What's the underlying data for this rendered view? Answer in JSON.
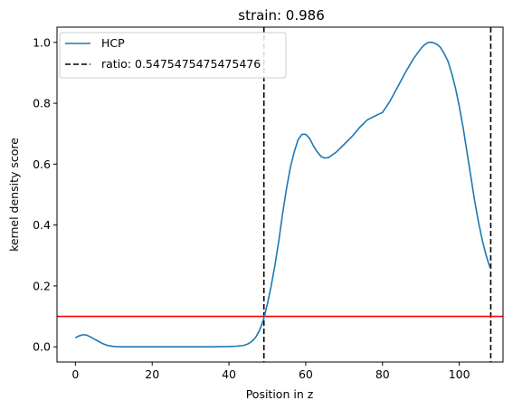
{
  "chart_data": {
    "type": "line",
    "title": "strain: 0.986",
    "xlabel": "Position in z",
    "ylabel": "kernel density score",
    "xlim": [
      -4.8,
      111.4
    ],
    "ylim": [
      -0.05,
      1.05
    ],
    "xticks": [
      "0",
      "20",
      "40",
      "60",
      "80",
      "100"
    ],
    "yticks": [
      "0.0",
      "0.2",
      "0.4",
      "0.6",
      "0.8",
      "1.0"
    ],
    "grid": false,
    "legend_position": "upper left",
    "series": [
      {
        "name": "HCP",
        "color": "#1f77b4",
        "x": [
          0,
          1,
          2,
          3,
          4,
          5,
          6,
          7,
          8,
          9,
          10,
          12,
          15,
          20,
          25,
          30,
          35,
          40,
          42,
          44,
          45,
          46,
          47,
          48,
          49,
          50,
          51,
          52,
          53,
          54,
          55,
          56,
          57,
          58,
          59,
          60,
          61,
          62,
          63,
          64,
          65,
          66,
          68,
          70,
          72,
          74,
          76,
          78,
          80,
          82,
          84,
          86,
          88,
          90,
          91,
          92,
          93,
          94,
          95,
          96,
          97,
          98,
          99,
          100,
          101,
          102,
          103,
          104,
          105,
          106,
          107,
          108
        ],
        "values": [
          0.03,
          0.036,
          0.04,
          0.038,
          0.032,
          0.025,
          0.018,
          0.011,
          0.006,
          0.003,
          0.001,
          0.0,
          0.0,
          0.0,
          0.0,
          0.0,
          0.0,
          0.001,
          0.002,
          0.005,
          0.01,
          0.018,
          0.032,
          0.055,
          0.09,
          0.14,
          0.2,
          0.27,
          0.35,
          0.44,
          0.52,
          0.59,
          0.64,
          0.68,
          0.698,
          0.698,
          0.685,
          0.66,
          0.64,
          0.625,
          0.62,
          0.622,
          0.64,
          0.665,
          0.69,
          0.72,
          0.745,
          0.758,
          0.77,
          0.808,
          0.855,
          0.902,
          0.945,
          0.98,
          0.993,
          1.0,
          1.0,
          0.995,
          0.985,
          0.965,
          0.94,
          0.9,
          0.85,
          0.79,
          0.72,
          0.64,
          0.56,
          0.48,
          0.41,
          0.35,
          0.3,
          0.26
        ]
      }
    ],
    "reference_lines": [
      {
        "orientation": "vertical",
        "x": 49.1,
        "style": "dashed",
        "color": "#000000",
        "label": "ratio: 0.5475475475475476"
      },
      {
        "orientation": "vertical",
        "x": 108.2,
        "style": "dashed",
        "color": "#000000"
      },
      {
        "orientation": "horizontal",
        "y": 0.1,
        "style": "solid",
        "color": "#ff0000"
      }
    ]
  }
}
